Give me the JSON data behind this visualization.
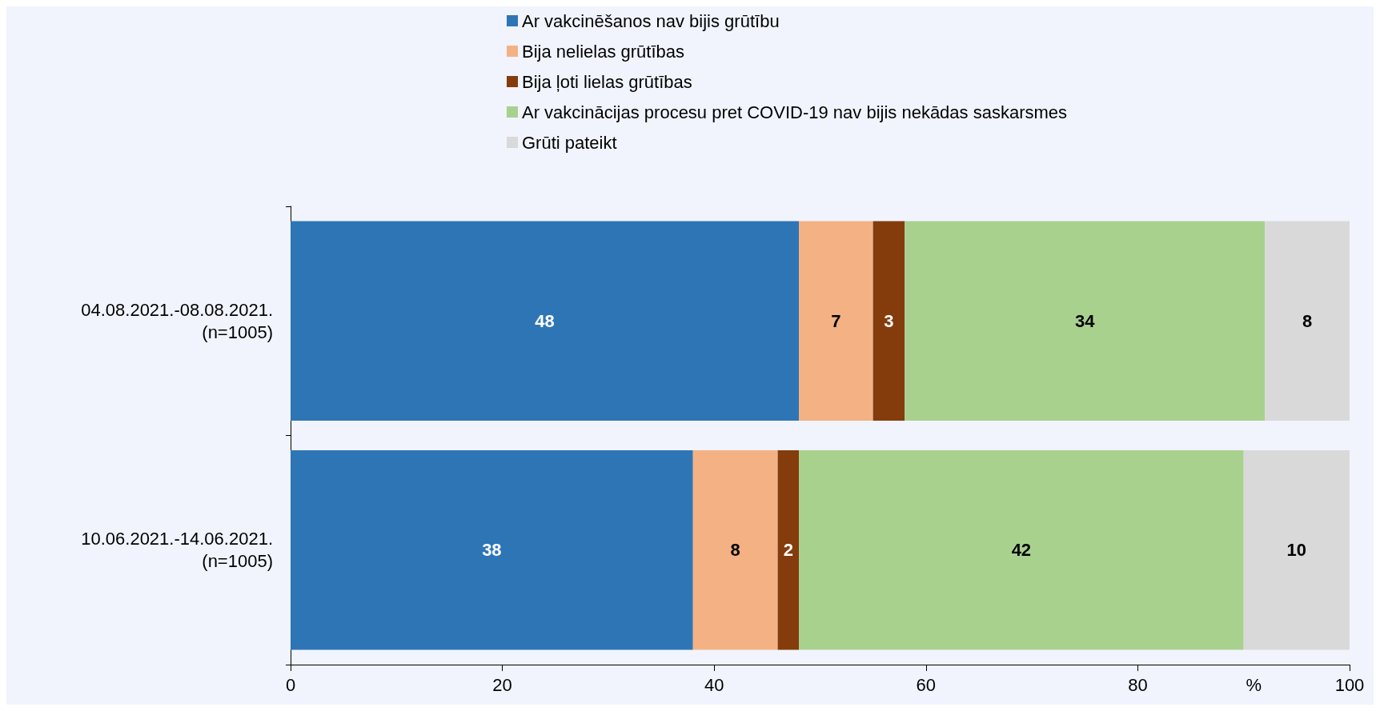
{
  "chart_data": {
    "type": "bar",
    "orientation": "horizontal",
    "stacked": true,
    "data_labels": true,
    "legend": "top",
    "grid": false,
    "xlabel": "%",
    "categories": [
      "04.08.2021.-08.08.2021.\n(n=1005)",
      "10.06.2021.-14.06.2021.\n(n=1005)"
    ],
    "xlim": [
      0,
      100
    ],
    "xticks": [
      0,
      20,
      40,
      60,
      80,
      100
    ],
    "series": [
      {
        "name": "Ar vakcinēšanos nav bijis grūtību",
        "color": "#2e75b6",
        "values": [
          48,
          38
        ]
      },
      {
        "name": "Bija nelielas grūtības",
        "color": "#f4b183",
        "values": [
          7,
          8
        ]
      },
      {
        "name": "Bija ļoti lielas grūtības",
        "color": "#843c0c",
        "values": [
          3,
          2
        ]
      },
      {
        "name": "Ar vakcinācijas procesu pret COVID-19 nav bijis nekādas saskarsmes",
        "color": "#a9d18e",
        "values": [
          34,
          42
        ]
      },
      {
        "name": "Grūti pateikt",
        "color": "#d9d9d9",
        "values": [
          8,
          10
        ]
      }
    ]
  }
}
